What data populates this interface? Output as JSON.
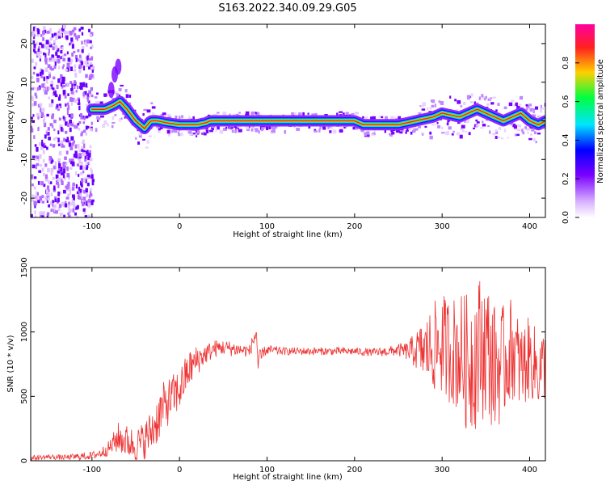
{
  "title": "S163.2022.340.09.29.G05",
  "chart_data": [
    {
      "type": "heatmap",
      "xlabel": "Height of straight line (km)",
      "ylabel": "Frequency (Hz)",
      "xlim": [
        -170,
        418
      ],
      "ylim": [
        -25,
        25
      ],
      "xticks": [
        -100,
        0,
        100,
        200,
        300,
        400
      ],
      "yticks": [
        -20,
        -10,
        0,
        10,
        20
      ],
      "colorbar": {
        "label": "Normalized spectral amplitude",
        "range": [
          0,
          1
        ],
        "ticks": [
          "0.0",
          "0.2",
          "0.4",
          "0.6",
          "0.8"
        ]
      },
      "ridge": {
        "x": [
          -95,
          -85,
          -75,
          -68,
          -60,
          -50,
          -40,
          -33,
          -25,
          -15,
          0,
          10,
          20,
          30,
          35,
          60,
          100,
          150,
          195,
          200,
          210,
          230,
          250,
          260,
          270,
          280,
          290,
          300,
          310,
          320,
          330,
          340,
          350,
          360,
          370,
          380,
          390,
          400,
          410,
          418
        ],
        "y": [
          3,
          3,
          4,
          5,
          3,
          0,
          -2,
          0,
          0,
          -0.5,
          -1,
          -1,
          -1,
          -0.5,
          0,
          0,
          0,
          0,
          0,
          0,
          -1,
          -1,
          -1,
          -0.5,
          0,
          0.5,
          1,
          2,
          1.5,
          1,
          2,
          3,
          2,
          1,
          0,
          1,
          2,
          0,
          -1,
          0
        ]
      }
    },
    {
      "type": "line",
      "xlabel": "Height of straight line (km)",
      "ylabel": "SNR (10 * v/v)",
      "xlim": [
        -170,
        418
      ],
      "ylim": [
        0,
        1500
      ],
      "xticks": [
        -100,
        0,
        100,
        200,
        300,
        400
      ],
      "yticks": [
        0,
        500,
        1000,
        1500
      ],
      "color": "#ee3333",
      "series": [
        {
          "x": [
            -170,
            -150,
            -130,
            -110,
            -100,
            -90,
            -80,
            -70,
            -60,
            -50,
            -40,
            -30,
            -20,
            -10,
            0,
            10,
            20,
            30,
            40,
            50,
            60,
            70,
            80,
            88,
            90,
            95,
            100,
            120,
            150,
            180,
            200,
            220,
            240,
            250,
            260,
            270,
            280,
            290,
            300,
            310,
            320,
            330,
            340,
            350,
            360,
            370,
            380,
            390,
            400,
            410,
            418
          ],
          "values": [
            20,
            30,
            25,
            35,
            40,
            60,
            100,
            180,
            150,
            120,
            160,
            250,
            400,
            480,
            550,
            700,
            780,
            830,
            870,
            880,
            870,
            860,
            850,
            1000,
            700,
            840,
            860,
            850,
            850,
            850,
            850,
            840,
            850,
            860,
            850,
            860,
            850,
            880,
            900,
            860,
            830,
            750,
            850,
            900,
            720,
            760,
            880,
            720,
            800,
            700,
            750
          ],
          "spread": [
            20,
            20,
            20,
            30,
            30,
            40,
            60,
            120,
            130,
            130,
            150,
            180,
            200,
            180,
            170,
            150,
            120,
            80,
            70,
            60,
            60,
            50,
            50,
            80,
            150,
            40,
            40,
            30,
            30,
            30,
            30,
            30,
            40,
            50,
            70,
            150,
            250,
            350,
            400,
            420,
            480,
            550,
            600,
            550,
            500,
            450,
            400,
            350,
            320,
            300,
            280
          ]
        }
      ]
    }
  ]
}
